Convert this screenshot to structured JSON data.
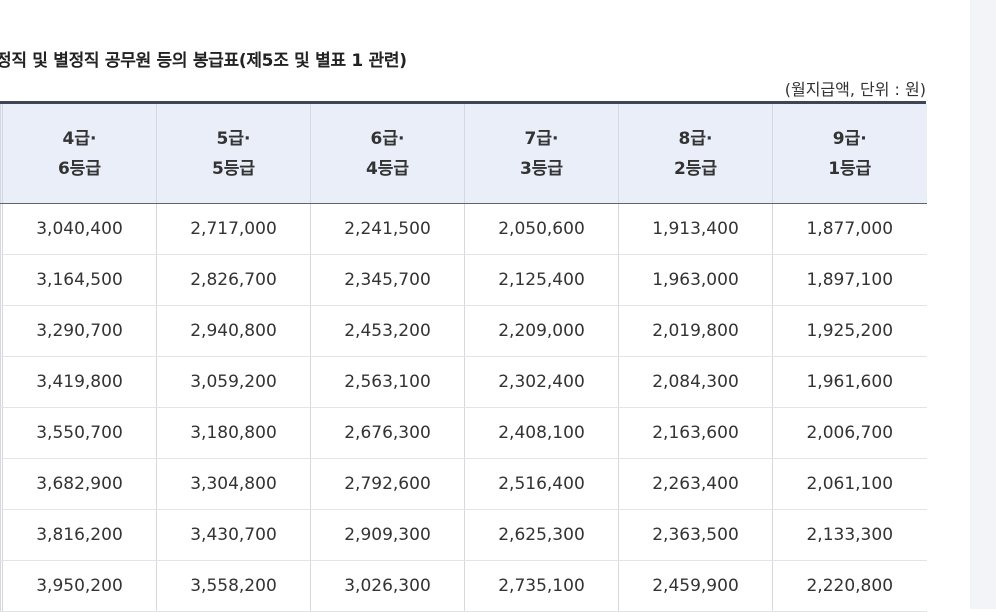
{
  "title": "정직 및 별정직 공무원 등의 봉급표(제5조 및 별표 1 관련)",
  "unit_note": "(월지급액, 단위 : 원)",
  "columns": [
    {
      "line1": "4급·",
      "line2": "6등급"
    },
    {
      "line1": "5급·",
      "line2": "5등급"
    },
    {
      "line1": "6급·",
      "line2": "4등급"
    },
    {
      "line1": "7급·",
      "line2": "3등급"
    },
    {
      "line1": "8급·",
      "line2": "2등급"
    },
    {
      "line1": "9급·",
      "line2": "1등급"
    }
  ],
  "rows": [
    [
      "3,040,400",
      "2,717,000",
      "2,241,500",
      "2,050,600",
      "1,913,400",
      "1,877,000"
    ],
    [
      "3,164,500",
      "2,826,700",
      "2,345,700",
      "2,125,400",
      "1,963,000",
      "1,897,100"
    ],
    [
      "3,290,700",
      "2,940,800",
      "2,453,200",
      "2,209,000",
      "2,019,800",
      "1,925,200"
    ],
    [
      "3,419,800",
      "3,059,200",
      "2,563,100",
      "2,302,400",
      "2,084,300",
      "1,961,600"
    ],
    [
      "3,550,700",
      "3,180,800",
      "2,676,300",
      "2,408,100",
      "2,163,600",
      "2,006,700"
    ],
    [
      "3,682,900",
      "3,304,800",
      "2,792,600",
      "2,516,400",
      "2,263,400",
      "2,061,100"
    ],
    [
      "3,816,200",
      "3,430,700",
      "2,909,300",
      "2,625,300",
      "2,363,500",
      "2,133,300"
    ],
    [
      "3,950,200",
      "3,558,200",
      "3,026,300",
      "2,735,100",
      "2,459,900",
      "2,220,800"
    ]
  ]
}
